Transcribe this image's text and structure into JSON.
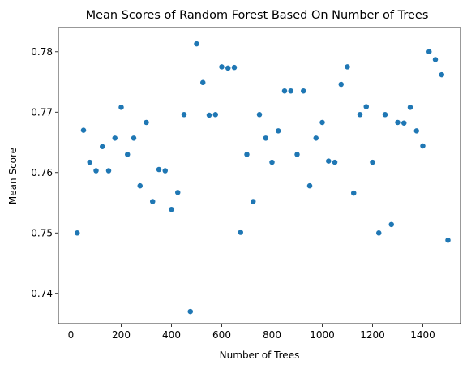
{
  "chart_data": {
    "type": "scatter",
    "title": "Mean Scores of Random Forest Based On Number of Trees",
    "xlabel": "Number of Trees",
    "ylabel": "Mean Score",
    "xlim": [
      -50,
      1550
    ],
    "ylim": [
      0.735,
      0.784
    ],
    "xticks": [
      0,
      200,
      400,
      600,
      800,
      1000,
      1200,
      1400
    ],
    "yticks": [
      0.74,
      0.75,
      0.76,
      0.77,
      0.78
    ],
    "grid": false,
    "color": "#1f77b4",
    "x": [
      25,
      50,
      75,
      100,
      125,
      150,
      175,
      200,
      225,
      250,
      275,
      300,
      325,
      350,
      375,
      400,
      425,
      450,
      475,
      500,
      525,
      550,
      575,
      600,
      625,
      650,
      675,
      700,
      725,
      750,
      775,
      800,
      825,
      850,
      875,
      900,
      925,
      950,
      975,
      1000,
      1025,
      1050,
      1075,
      1100,
      1125,
      1150,
      1175,
      1200,
      1225,
      1250,
      1275,
      1300,
      1325,
      1350,
      1375,
      1400,
      1425,
      1450,
      1475,
      1500
    ],
    "y": [
      0.75,
      0.767,
      0.7617,
      0.7603,
      0.7643,
      0.7603,
      0.7657,
      0.7708,
      0.763,
      0.7657,
      0.7578,
      0.7683,
      0.7552,
      0.7605,
      0.7603,
      0.7539,
      0.7567,
      0.7696,
      0.737,
      0.7813,
      0.7749,
      0.7695,
      0.7696,
      0.7775,
      0.7773,
      0.7774,
      0.7501,
      0.763,
      0.7552,
      0.7696,
      0.7657,
      0.7617,
      0.7669,
      0.7735,
      0.7735,
      0.763,
      0.7735,
      0.7578,
      0.7657,
      0.7683,
      0.7619,
      0.7617,
      0.7746,
      0.7775,
      0.7566,
      0.7696,
      0.7709,
      0.7617,
      0.75,
      0.7696,
      0.7514,
      0.7683,
      0.7682,
      0.7708,
      0.7669,
      0.7644,
      0.78,
      0.7787,
      0.7762,
      0.7488
    ]
  }
}
